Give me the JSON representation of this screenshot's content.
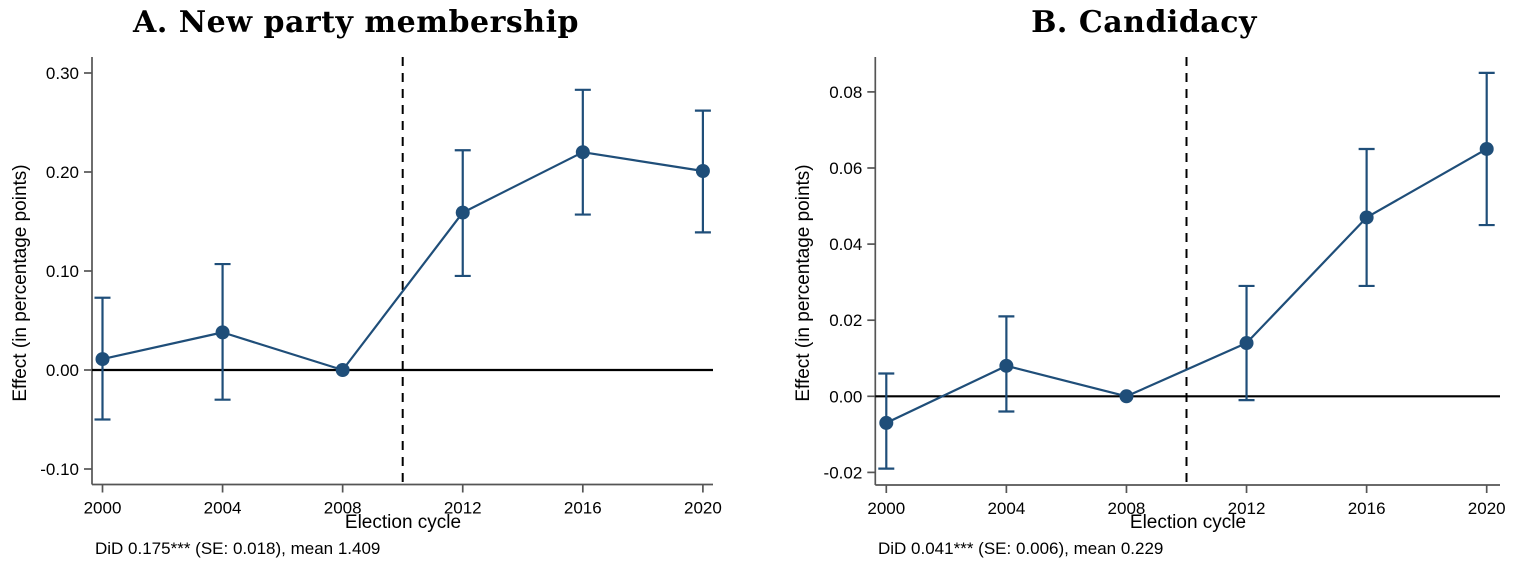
{
  "figure_kind": "two-panel event-study figure",
  "colors": {
    "series_line": "#1f4e79",
    "marker_fill": "#1f4e79",
    "axis_line": "#555555",
    "zero_line": "#000000",
    "reference_line": "#000000",
    "text": "#000000",
    "background": "#ffffff"
  },
  "chart_data": [
    {
      "type": "line",
      "panel": "A",
      "title": "A. New party membership",
      "xlabel": "Election cycle",
      "ylabel": "Effect (in percentage points)",
      "note": "DiD 0.175*** (SE: 0.018), mean 1.409",
      "x": [
        2000,
        2004,
        2008,
        2012,
        2016,
        2020
      ],
      "xtick_labels": [
        "2000",
        "2004",
        "2008",
        "2012",
        "2016",
        "2020"
      ],
      "series": [
        {
          "name": "Effect",
          "values": [
            0.011,
            0.038,
            0.0,
            0.159,
            0.22,
            0.201
          ],
          "ci_low": [
            -0.05,
            -0.03,
            null,
            0.095,
            0.157,
            0.139
          ],
          "ci_high": [
            0.073,
            0.107,
            null,
            0.222,
            0.283,
            0.262
          ]
        }
      ],
      "yticks": [
        -0.1,
        0.0,
        0.1,
        0.2,
        0.3
      ],
      "ytick_labels": [
        "-0.10",
        "0.00",
        "0.10",
        "0.20",
        "0.30"
      ],
      "ylim": [
        -0.116,
        0.316
      ],
      "xlim": [
        1999.6,
        2020.4
      ],
      "zero_hline": 0,
      "reference_vline_x": 2010,
      "reference_vline_style": "dashed",
      "grid": false,
      "legend": "none",
      "error_bars": true
    },
    {
      "type": "line",
      "panel": "B",
      "title": "B. Candidacy",
      "xlabel": "Election cycle",
      "ylabel": "Effect (in percentage points)",
      "note": "DiD 0.041*** (SE: 0.006), mean 0.229",
      "x": [
        2000,
        2004,
        2008,
        2012,
        2016,
        2020
      ],
      "xtick_labels": [
        "2000",
        "2004",
        "2008",
        "2012",
        "2016",
        "2020"
      ],
      "series": [
        {
          "name": "Effect",
          "values": [
            -0.007,
            0.008,
            0.0,
            0.014,
            0.047,
            0.065
          ],
          "ci_low": [
            -0.019,
            -0.004,
            null,
            -0.001,
            0.029,
            0.045
          ],
          "ci_high": [
            0.006,
            0.021,
            null,
            0.029,
            0.065,
            0.085
          ]
        }
      ],
      "yticks": [
        -0.02,
        0.0,
        0.02,
        0.04,
        0.06,
        0.08
      ],
      "ytick_labels": [
        "-0.02",
        "0.00",
        "0.02",
        "0.04",
        "0.06",
        "0.08"
      ],
      "ylim": [
        -0.023,
        0.089
      ],
      "xlim": [
        1999.6,
        2020.5
      ],
      "zero_hline": 0,
      "reference_vline_x": 2010,
      "reference_vline_style": "dashed",
      "grid": false,
      "legend": "none",
      "error_bars": true
    }
  ]
}
